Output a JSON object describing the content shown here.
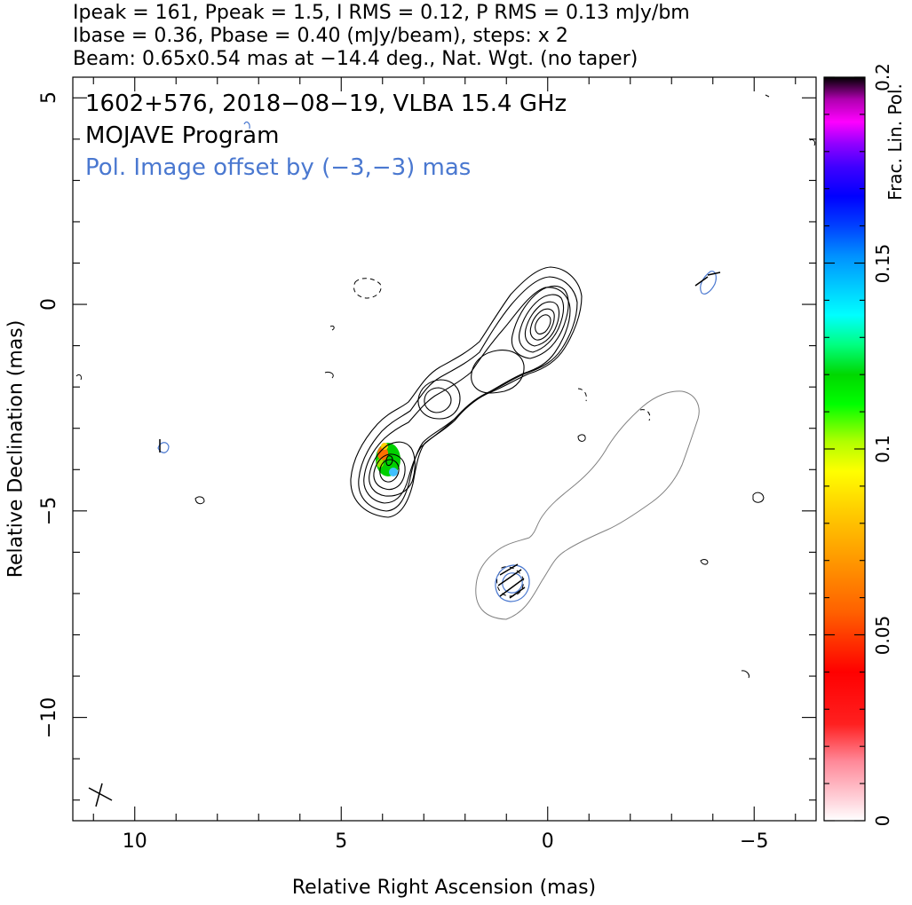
{
  "header": {
    "line1": "Ipeak = 161, Ppeak = 1.5, I RMS = 0.12, P RMS = 0.13 mJy/bm",
    "line2": "Ibase = 0.36, Pbase = 0.40 (mJy/beam), steps: x 2",
    "line3": "Beam: 0.65x0.54 mas at −14.4 deg., Nat. Wgt. (no taper)"
  },
  "plot_text": {
    "source_line": "1602+576, 2018−08−19, VLBA 15.4 GHz",
    "program_line": "MOJAVE Program",
    "offset_line": "Pol. Image offset by (−3,−3) mas"
  },
  "colors": {
    "offset_text": "#4a78d0",
    "pol_contour": "#4a78d0",
    "pol_total_contour": "#808080",
    "i_contour": "#000000"
  },
  "chart_data": {
    "type": "contour",
    "xlabel": "Relative Right Ascension (mas)",
    "ylabel": "Relative Declination (mas)",
    "xlim": [
      11.5,
      -6.5
    ],
    "ylim": [
      -12.5,
      5.5
    ],
    "x_ticks": [
      10,
      5,
      0,
      -5
    ],
    "x_tick_labels": [
      "10",
      "5",
      "0",
      "−5"
    ],
    "y_ticks": [
      5,
      0,
      -5,
      -10
    ],
    "y_tick_labels": [
      "5",
      "0",
      "−5",
      "−10"
    ],
    "core": {
      "ra": 0.2,
      "dec": -0.5,
      "peak_mJy_per_beam": 161
    },
    "colorbar": {
      "label": "Frac. Lin. Pol.",
      "range": [
        0,
        0.2
      ],
      "ticks": [
        0,
        0.05,
        0.1,
        0.15,
        0.2
      ],
      "tick_labels": [
        "0",
        "0.05",
        "0.1",
        "0.15",
        "0.2"
      ],
      "stops": [
        [
          0.0,
          "#ffffff"
        ],
        [
          0.03,
          "#ffd0d8"
        ],
        [
          0.08,
          "#ff8898"
        ],
        [
          0.13,
          "#ff2020"
        ],
        [
          0.2,
          "#ff0000"
        ],
        [
          0.28,
          "#ff6000"
        ],
        [
          0.36,
          "#ffa000"
        ],
        [
          0.42,
          "#ffd000"
        ],
        [
          0.47,
          "#ffff00"
        ],
        [
          0.51,
          "#b0ff00"
        ],
        [
          0.56,
          "#00ff00"
        ],
        [
          0.6,
          "#00d800"
        ],
        [
          0.64,
          "#00ff80"
        ],
        [
          0.68,
          "#00ffff"
        ],
        [
          0.72,
          "#00c8ff"
        ],
        [
          0.76,
          "#0090ff"
        ],
        [
          0.8,
          "#0040ff"
        ],
        [
          0.84,
          "#0000ff"
        ],
        [
          0.88,
          "#4000ff"
        ],
        [
          0.91,
          "#9000ff"
        ],
        [
          0.94,
          "#ff00ff"
        ],
        [
          0.97,
          "#b000b0"
        ],
        [
          1.0,
          "#000000"
        ]
      ]
    }
  }
}
